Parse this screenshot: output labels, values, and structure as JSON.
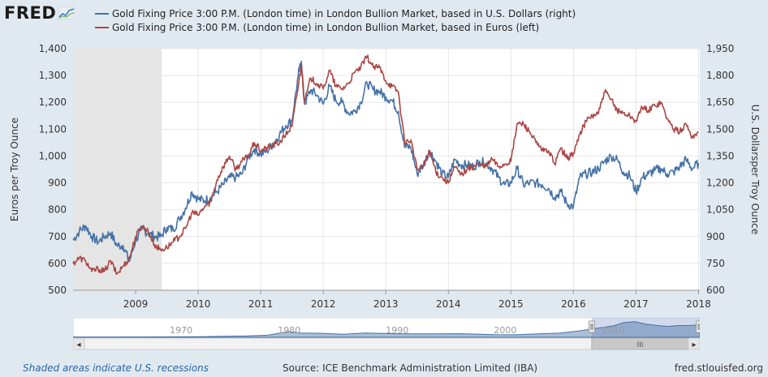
{
  "header": {
    "logo_text": "FRED",
    "logo_icon": "fred-chart-line-icon"
  },
  "legend": [
    {
      "label": "Gold Fixing Price 3:00 P.M. (London time) in London Bullion Market, based in U.S. Dollars (right)",
      "color": "#4572a7"
    },
    {
      "label": "Gold Fixing Price 3:00 P.M. (London time) in London Bullion Market, based in Euros (left)",
      "color": "#aa4643"
    }
  ],
  "chart_data": {
    "type": "line",
    "x_ticks": [
      "2009",
      "2010",
      "2011",
      "2012",
      "2013",
      "2014",
      "2015",
      "2016",
      "2017",
      "2018"
    ],
    "x_range": [
      "2008-01",
      "2018-01"
    ],
    "y_left": {
      "label": "Euros per Troy Ounce",
      "range": [
        500,
        1400
      ],
      "ticks": [
        "500",
        "600",
        "700",
        "800",
        "900",
        "1,000",
        "1,100",
        "1,200",
        "1,300",
        "1,400"
      ]
    },
    "y_right": {
      "label": "U.S. Dollarsper Troy Ounce",
      "range": [
        600,
        1950
      ],
      "ticks": [
        "600",
        "750",
        "900",
        "1,050",
        "1,200",
        "1,350",
        "1,500",
        "1,650",
        "1,800",
        "1,950"
      ]
    },
    "grid": true,
    "recession": {
      "start": "2008-01",
      "end": "2009-06"
    },
    "series": [
      {
        "name": "Gold Fixing Price 3:00 P.M. (London time) in London Bullion Market, based in U.S. Dollars (right)",
        "axis": "right",
        "color": "#4572a7",
        "x": [
          2008.0,
          2008.1,
          2008.2,
          2008.3,
          2008.4,
          2008.5,
          2008.6,
          2008.7,
          2008.8,
          2008.9,
          2009.0,
          2009.1,
          2009.2,
          2009.3,
          2009.4,
          2009.5,
          2009.6,
          2009.7,
          2009.8,
          2009.9,
          2010.0,
          2010.1,
          2010.2,
          2010.3,
          2010.4,
          2010.5,
          2010.6,
          2010.7,
          2010.8,
          2010.9,
          2011.0,
          2011.1,
          2011.2,
          2011.3,
          2011.4,
          2011.5,
          2011.6,
          2011.65,
          2011.7,
          2011.8,
          2011.9,
          2012.0,
          2012.1,
          2012.2,
          2012.3,
          2012.4,
          2012.5,
          2012.6,
          2012.7,
          2012.8,
          2012.9,
          2013.0,
          2013.1,
          2013.2,
          2013.3,
          2013.4,
          2013.5,
          2013.6,
          2013.7,
          2013.8,
          2013.9,
          2014.0,
          2014.1,
          2014.2,
          2014.3,
          2014.4,
          2014.5,
          2014.6,
          2014.7,
          2014.8,
          2014.9,
          2015.0,
          2015.1,
          2015.2,
          2015.3,
          2015.4,
          2015.5,
          2015.6,
          2015.7,
          2015.8,
          2015.9,
          2016.0,
          2016.1,
          2016.2,
          2016.3,
          2016.4,
          2016.5,
          2016.6,
          2016.7,
          2016.8,
          2016.9,
          2017.0,
          2017.1,
          2017.2,
          2017.3,
          2017.4,
          2017.5,
          2017.6,
          2017.7,
          2017.8,
          2017.9,
          2018.0
        ],
        "values": [
          880,
          930,
          960,
          900,
          870,
          900,
          920,
          850,
          850,
          760,
          880,
          940,
          920,
          900,
          900,
          950,
          940,
          1000,
          1060,
          1150,
          1110,
          1100,
          1120,
          1150,
          1190,
          1230,
          1230,
          1250,
          1340,
          1390,
          1360,
          1380,
          1420,
          1470,
          1520,
          1550,
          1800,
          1880,
          1640,
          1720,
          1690,
          1640,
          1740,
          1660,
          1650,
          1590,
          1600,
          1650,
          1760,
          1720,
          1710,
          1680,
          1660,
          1600,
          1400,
          1400,
          1250,
          1300,
          1380,
          1320,
          1250,
          1230,
          1330,
          1300,
          1300,
          1290,
          1320,
          1310,
          1280,
          1230,
          1190,
          1200,
          1280,
          1190,
          1200,
          1200,
          1190,
          1170,
          1120,
          1150,
          1080,
          1070,
          1230,
          1250,
          1260,
          1280,
          1320,
          1350,
          1330,
          1260,
          1240,
          1150,
          1230,
          1250,
          1270,
          1280,
          1250,
          1260,
          1290,
          1330,
          1280,
          1310
        ]
      },
      {
        "name": "Gold Fixing Price 3:00 P.M. (London time) in London Bullion Market, based in Euros (left)",
        "axis": "left",
        "color": "#aa4643",
        "x": [
          2008.0,
          2008.1,
          2008.2,
          2008.3,
          2008.4,
          2008.5,
          2008.6,
          2008.7,
          2008.8,
          2008.9,
          2009.0,
          2009.1,
          2009.2,
          2009.3,
          2009.4,
          2009.5,
          2009.6,
          2009.7,
          2009.8,
          2009.9,
          2010.0,
          2010.1,
          2010.2,
          2010.3,
          2010.4,
          2010.5,
          2010.6,
          2010.7,
          2010.8,
          2010.9,
          2011.0,
          2011.1,
          2011.2,
          2011.3,
          2011.4,
          2011.5,
          2011.6,
          2011.65,
          2011.7,
          2011.8,
          2011.9,
          2012.0,
          2012.1,
          2012.2,
          2012.3,
          2012.4,
          2012.5,
          2012.6,
          2012.7,
          2012.8,
          2012.9,
          2013.0,
          2013.1,
          2013.2,
          2013.3,
          2013.4,
          2013.5,
          2013.6,
          2013.7,
          2013.8,
          2013.9,
          2014.0,
          2014.1,
          2014.2,
          2014.3,
          2014.4,
          2014.5,
          2014.6,
          2014.7,
          2014.8,
          2014.9,
          2015.0,
          2015.1,
          2015.2,
          2015.3,
          2015.4,
          2015.5,
          2015.6,
          2015.7,
          2015.8,
          2015.9,
          2016.0,
          2016.1,
          2016.2,
          2016.3,
          2016.4,
          2016.5,
          2016.6,
          2016.7,
          2016.8,
          2016.9,
          2017.0,
          2017.1,
          2017.2,
          2017.3,
          2017.4,
          2017.5,
          2017.6,
          2017.7,
          2017.8,
          2017.9,
          2018.0
        ],
        "values": [
          600,
          620,
          610,
          570,
          580,
          570,
          610,
          560,
          590,
          620,
          700,
          740,
          720,
          670,
          650,
          660,
          680,
          700,
          730,
          790,
          780,
          810,
          830,
          910,
          960,
          1000,
          950,
          980,
          1000,
          1050,
          1020,
          1030,
          1040,
          1050,
          1080,
          1110,
          1260,
          1340,
          1200,
          1290,
          1270,
          1250,
          1320,
          1260,
          1250,
          1270,
          1310,
          1330,
          1370,
          1330,
          1330,
          1280,
          1260,
          1240,
          1050,
          1060,
          950,
          960,
          1020,
          940,
          920,
          900,
          960,
          930,
          950,
          960,
          970,
          960,
          990,
          960,
          970,
          980,
          1120,
          1120,
          1090,
          1050,
          1020,
          1020,
          970,
          1030,
          990,
          1010,
          1080,
          1130,
          1150,
          1160,
          1240,
          1210,
          1170,
          1160,
          1150,
          1130,
          1180,
          1170,
          1190,
          1200,
          1140,
          1100,
          1090,
          1120,
          1070,
          1090
        ]
      }
    ]
  },
  "navigator": {
    "year_labels": [
      "1970",
      "1980",
      "1990",
      "2000",
      "2010"
    ],
    "year_positions": [
      1970,
      1980,
      1990,
      2000,
      2010
    ],
    "range": [
      1960,
      2018
    ],
    "selection": [
      2008,
      2018
    ],
    "overview": [
      [
        1960,
        36
      ],
      [
        1968,
        42
      ],
      [
        1972,
        65
      ],
      [
        1976,
        140
      ],
      [
        1978,
        225
      ],
      [
        1980,
        610
      ],
      [
        1981,
        460
      ],
      [
        1983,
        420
      ],
      [
        1985,
        320
      ],
      [
        1987,
        450
      ],
      [
        1990,
        380
      ],
      [
        1993,
        360
      ],
      [
        1996,
        380
      ],
      [
        1999,
        280
      ],
      [
        2001,
        270
      ],
      [
        2003,
        360
      ],
      [
        2005,
        440
      ],
      [
        2007,
        700
      ],
      [
        2008,
        870
      ],
      [
        2010,
        1220
      ],
      [
        2011,
        1570
      ],
      [
        2012,
        1670
      ],
      [
        2013,
        1410
      ],
      [
        2014,
        1260
      ],
      [
        2015,
        1160
      ],
      [
        2016,
        1250
      ],
      [
        2017,
        1260
      ],
      [
        2018,
        1310
      ]
    ],
    "scrollbar_grip": "III",
    "scroll_left_icon": "◂",
    "scroll_right_icon": "▸"
  },
  "footer": {
    "recession_note": "Shaded areas indicate U.S. recessions",
    "source": "Source: ICE Benchmark Administration Limited (IBA)",
    "site": "fred.stlouisfed.org"
  }
}
